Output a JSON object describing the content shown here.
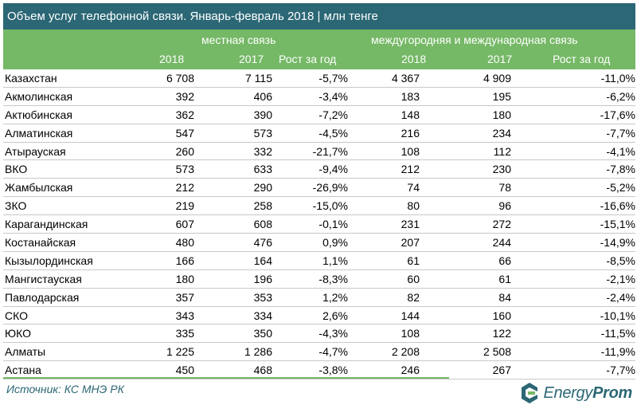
{
  "title": "Объем услуг телефонной связи. Январь-февраль 2018 | млн тенге",
  "groups": {
    "local": "местная связь",
    "intl": "междугородняя и международная связь"
  },
  "columns": [
    "2018",
    "2017",
    "Рост за год",
    "2018",
    "2017",
    "Рост за год"
  ],
  "rows": [
    {
      "name": "Казахстан",
      "cells": [
        "6 708",
        "7 115",
        "-5,7%",
        "4 367",
        "4 909",
        "-11,0%"
      ]
    },
    {
      "name": "Акмолинская",
      "cells": [
        "392",
        "406",
        "-3,4%",
        "183",
        "195",
        "-6,2%"
      ]
    },
    {
      "name": "Актюбинская",
      "cells": [
        "362",
        "390",
        "-7,2%",
        "148",
        "180",
        "-17,6%"
      ]
    },
    {
      "name": "Алматинская",
      "cells": [
        "547",
        "573",
        "-4,5%",
        "216",
        "234",
        "-7,7%"
      ]
    },
    {
      "name": "Атырауская",
      "cells": [
        "260",
        "332",
        "-21,7%",
        "108",
        "112",
        "-4,1%"
      ]
    },
    {
      "name": "ВКО",
      "cells": [
        "573",
        "633",
        "-9,4%",
        "212",
        "230",
        "-7,8%"
      ]
    },
    {
      "name": "Жамбылская",
      "cells": [
        "212",
        "290",
        "-26,9%",
        "74",
        "78",
        "-5,2%"
      ]
    },
    {
      "name": "ЗКО",
      "cells": [
        "219",
        "258",
        "-15,0%",
        "80",
        "96",
        "-16,6%"
      ]
    },
    {
      "name": "Карагандинская",
      "cells": [
        "607",
        "608",
        "-0,1%",
        "231",
        "272",
        "-15,1%"
      ]
    },
    {
      "name": "Костанайская",
      "cells": [
        "480",
        "476",
        "0,9%",
        "207",
        "244",
        "-14,9%"
      ]
    },
    {
      "name": "Кызылординская",
      "cells": [
        "166",
        "164",
        "1,1%",
        "61",
        "66",
        "-8,5%"
      ]
    },
    {
      "name": "Мангистауская",
      "cells": [
        "180",
        "196",
        "-8,3%",
        "60",
        "61",
        "-2,1%"
      ]
    },
    {
      "name": "Павлодарская",
      "cells": [
        "357",
        "353",
        "1,2%",
        "82",
        "84",
        "-2,4%"
      ]
    },
    {
      "name": "СКО",
      "cells": [
        "343",
        "334",
        "2,6%",
        "144",
        "160",
        "-10,1%"
      ]
    },
    {
      "name": "ЮКО",
      "cells": [
        "335",
        "350",
        "-4,3%",
        "108",
        "122",
        "-11,5%"
      ]
    },
    {
      "name": "Алматы",
      "cells": [
        "1 225",
        "1 286",
        "-4,7%",
        "2 208",
        "2 508",
        "-11,9%"
      ]
    },
    {
      "name": "Астана",
      "cells": [
        "450",
        "468",
        "-3,8%",
        "246",
        "267",
        "-7,7%"
      ]
    }
  ],
  "source": "Источник: КС МНЭ РК",
  "logo": {
    "part1": "Energy",
    "part2": "Prom",
    "icon": "energyprom-logo-icon"
  },
  "colors": {
    "title_bg": "#2b6775",
    "header_bg": "#75b866",
    "text_accent": "#2b6775"
  }
}
